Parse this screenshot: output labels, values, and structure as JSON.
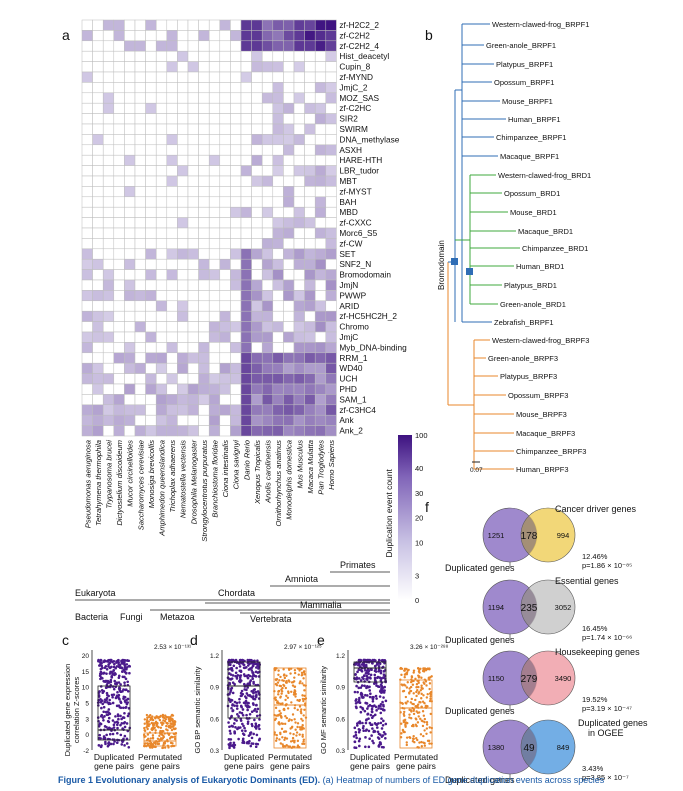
{
  "panels": {
    "a": "a",
    "b": "b",
    "c": "c",
    "d": "d",
    "e": "e",
    "f": "f"
  },
  "heatmap": {
    "domains": [
      "zf-H2C2_2",
      "zf-C2H2",
      "zf-C2H2_4",
      "Hist_deacetyl",
      "Cupin_8",
      "zf-MYND",
      "JmjC_2",
      "MOZ_SAS",
      "zf-C2HC",
      "SIR2",
      "SWIRM",
      "DNA_methylase",
      "ASXH",
      "HARE-HTH",
      "LBR_tudor",
      "MBT",
      "zf-MYST",
      "BAH",
      "MBD",
      "zf-CXXC",
      "Morc6_S5",
      "zf-CW",
      "SET",
      "SNF2_N",
      "Bromodomain",
      "JmjN",
      "PWWP",
      "ARID",
      "zf-HC5HC2H_2",
      "Chromo",
      "JmjC",
      "Myb_DNA-binding",
      "RRM_1",
      "WD40",
      "UCH",
      "PHD",
      "SAM_1",
      "zf-C3HC4",
      "Ank",
      "Ank_2"
    ],
    "species": [
      "Pseudomonas aeruginosa",
      "Tetrahymena thermophila",
      "Trypanosoma brucei",
      "Dictyostelium discoideum",
      "Mucor circinelloides",
      "Saccharomyces cerevisiae",
      "Monosiga brevicollis",
      "Amphimedon queenslandica",
      "Trichoplax adhaerens",
      "Nematostella vectensis",
      "Drosophila Melanogaster",
      "Strongylocentrotus purpuratus",
      "Branchiostoma floridae",
      "Ciona intestinalis",
      "Ciona savignyi",
      "Danio Rerio",
      "Xenopus Tropicalis",
      "Anolis carolinensis",
      "Ornithorhynchus anatinus",
      "Monodelphis domestica",
      "Mus Musculus",
      "Macaca Mulatta",
      "Pan Troglodytes",
      "Homo Sapiens"
    ],
    "legend_title": "Duplication event count",
    "legend_ticks": [
      "100",
      "40",
      "30",
      "20",
      "10",
      "3",
      "0"
    ],
    "taxonomy": {
      "row1": [
        "Eukaryota"
      ],
      "row2": [
        "Chordata",
        "Amniota",
        "Primates"
      ],
      "row3": [
        "Bacteria",
        "Fungi",
        "Metazoa",
        "Vertebrata",
        "Mammalia"
      ]
    }
  },
  "tree": {
    "clade_label": "Bromodomain",
    "scale": "0.07",
    "colors": {
      "brpf1": "#2f6db5",
      "brd1": "#3faa3c",
      "brpf3": "#e8872b"
    },
    "brpf1": [
      "Western-clawed-frog_BRPF1",
      "Green-anole_BRPF1",
      "Platypus_BRPF1",
      "Opossum_BRPF1",
      "Mouse_BRPF1",
      "Human_BRPF1",
      "Chimpanzee_BRPF1",
      "Macaque_BRPF1"
    ],
    "brd1": [
      "Western-clawed-frog_BRD1",
      "Opossum_BRD1",
      "Mouse_BRD1",
      "Macaque_BRD1",
      "Chimpanzee_BRD1",
      "Human_BRD1",
      "Platypus_BRD1",
      "Green-anole_BRD1"
    ],
    "zebrafish": "Zebrafish_BRPF1",
    "brpf3": [
      "Western-clawed-frog_BRPF3",
      "Green-anole_BRPF3",
      "Platypus_BRPF3",
      "Opossum_BRPF3",
      "Mouse_BRPF3",
      "Macaque_BRPF3",
      "Chimpanzee_BRPF3",
      "Human_BRPF3"
    ]
  },
  "boxplots": {
    "c": {
      "ylabel1": "Duplicated gene expression",
      "ylabel2": "correlation Z-scores",
      "pvalue": "2.53 × 10⁻¹³¹",
      "yticks": [
        "20",
        "15",
        "10",
        "5",
        "3",
        "0",
        "-2"
      ],
      "x1": [
        "Duplicated",
        "gene pairs"
      ],
      "x2": [
        "Permutated",
        "gene pairs"
      ]
    },
    "d": {
      "ylabel": "GO BP semantic similarity",
      "pvalue": "2.97 × 10⁻¹²⁵",
      "yticks": [
        "1.2",
        "0.9",
        "0.6",
        "0.3"
      ],
      "x1": [
        "Duplicated",
        "gene pairs"
      ],
      "x2": [
        "Permutated",
        "gene pairs"
      ]
    },
    "e": {
      "ylabel": "GO MF semantic similarity",
      "pvalue": "3.26 × 10⁻²⁸⁸",
      "yticks": [
        "1.2",
        "0.9",
        "0.6",
        "0.3"
      ],
      "x1": [
        "Duplicated",
        "gene pairs"
      ],
      "x2": [
        "Permutated",
        "gene pairs"
      ]
    },
    "colors": {
      "dup": "#4b1a8c",
      "perm": "#e8872b"
    }
  },
  "venns": [
    {
      "title": "Cancer driver genes",
      "left": "1251",
      "mid": "178",
      "right": "994",
      "pct": "12.46%",
      "p": "p=1.86 × 10⁻⁸⁵",
      "color": "#f0d060",
      "label": "Duplicated genes"
    },
    {
      "title": "Essential genes",
      "left": "1194",
      "mid": "235",
      "right": "3052",
      "pct": "16.45%",
      "p": "p=1.74 × 10⁻⁶⁶",
      "color": "#c8c8c8",
      "label": "Duplicated genes"
    },
    {
      "title": "Housekeeping genes",
      "left": "1150",
      "mid": "279",
      "right": "3490",
      "pct": "19.52%",
      "p": "p=3.19 × 10⁻⁴⁷",
      "color": "#f0a0a8",
      "label": "Duplicated genes"
    },
    {
      "title": "Duplicated genes in OGEE",
      "title1": "Duplicated genes",
      "title2": "in OGEE",
      "left": "1380",
      "mid": "49",
      "right": "849",
      "pct": "3.43%",
      "p": "p=3.85 × 10⁻⁷",
      "color": "#5aa0e0",
      "label": "Duplicated genes"
    }
  ],
  "caption": {
    "lead": "Figure 1",
    "bold": "Evolutionary analysis of Eukaryotic Dominants (ED).",
    "rest": "(a) Heatmap of numbers of ED gene duplication events across species"
  }
}
